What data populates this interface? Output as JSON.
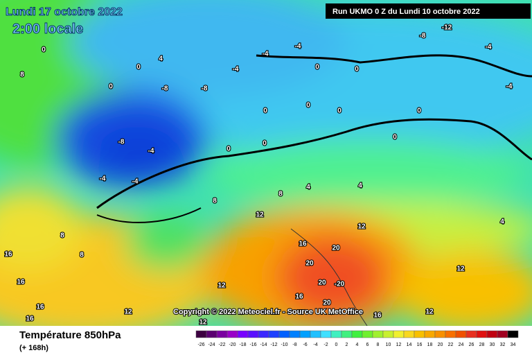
{
  "header": {
    "date": "Lundi 17 octobre 2022",
    "time": "2:00 locale",
    "run": "Run UKMO 0 Z du Lundi 10 octobre 2022"
  },
  "footer": {
    "title": "Température 850hPa",
    "range": "(+ 168h)",
    "copyright": "Copyright © 2022 Meteociel.fr - Source UK MetOffice"
  },
  "contour_labels": [
    "0",
    "0",
    "-4",
    "-4",
    "-8",
    "-8",
    "-8",
    "-4",
    "-4",
    "-4",
    "0",
    "0",
    "0",
    "0",
    "0",
    "0",
    "0",
    "4",
    "4",
    "8",
    "8",
    "12",
    "12",
    "16",
    "20",
    "20",
    "20",
    "-20",
    "16",
    "20",
    "12",
    "12",
    "12",
    "16",
    "16",
    "16",
    "16",
    "8",
    "8",
    "-8",
    "-12",
    "-4",
    "-4",
    "4",
    "12",
    "16",
    "12",
    "0",
    "0",
    "4",
    "-4",
    "0",
    "8"
  ],
  "scale": {
    "ticks": [
      -26,
      -24,
      -22,
      -20,
      -18,
      -16,
      -14,
      -12,
      -10,
      -8,
      -6,
      -4,
      -2,
      0,
      2,
      4,
      6,
      8,
      10,
      12,
      14,
      16,
      18,
      20,
      22,
      24,
      26,
      28,
      30,
      32,
      34
    ],
    "colors": [
      "#3c0040",
      "#5a0070",
      "#7a00a0",
      "#9a00c8",
      "#7800ff",
      "#5a10ff",
      "#3c28ff",
      "#1e40ff",
      "#0060ff",
      "#0080ff",
      "#00a0ff",
      "#20c0ff",
      "#40e0ff",
      "#40f0c0",
      "#40f080",
      "#40f040",
      "#70f030",
      "#a0f030",
      "#c8f030",
      "#f0f030",
      "#f8d820",
      "#f8c000",
      "#f8a800",
      "#f89000",
      "#f87000",
      "#f05000",
      "#e83020",
      "#e01010",
      "#c00010",
      "#a00020",
      "#000000"
    ]
  }
}
